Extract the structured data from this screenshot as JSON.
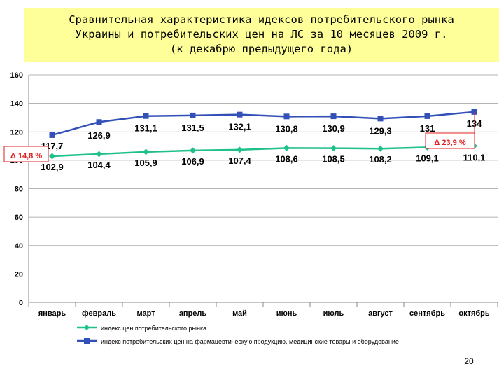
{
  "title": {
    "line1": "Сравнительная характеристика идексов потребительского рынка",
    "line2": "Украины и потребительских цен на ЛС за 10 месяцев 2009 г.",
    "line3": "(к декабрю предыдущего года)"
  },
  "page_number": "20",
  "chart_data": {
    "type": "line",
    "categories": [
      "январь",
      "февраль",
      "март",
      "апрель",
      "май",
      "июнь",
      "июль",
      "август",
      "сентябрь",
      "октябрь"
    ],
    "ylim": [
      0,
      160
    ],
    "yticks": [
      0,
      20,
      40,
      60,
      80,
      100,
      120,
      140,
      160
    ],
    "grid": true,
    "legend_placement": "bottom",
    "series": [
      {
        "name": "индекс цен потребительского рынка",
        "color": "#20c08a",
        "marker": "diamond",
        "values": [
          102.9,
          104.4,
          105.9,
          106.9,
          107.4,
          108.6,
          108.5,
          108.2,
          109.1,
          110.1
        ],
        "labels": [
          "102,9",
          "104,4",
          "105,9",
          "106,9",
          "107,4",
          "108,6",
          "108,5",
          "108,2",
          "109,1",
          "110,1"
        ]
      },
      {
        "name": "индекс потребительских цен на фармацевтическую продукцию, медицинские товары и оборудование",
        "color": "#3350b8",
        "marker": "square",
        "values": [
          117.7,
          126.9,
          131.1,
          131.5,
          132.1,
          130.8,
          130.9,
          129.3,
          131,
          134
        ],
        "labels": [
          "117,7",
          "126,9",
          "131,1",
          "131,5",
          "132,1",
          "130,8",
          "130,9",
          "129,3",
          "131",
          "134"
        ]
      }
    ],
    "annotations": [
      {
        "text": "Δ 14,8 %",
        "color": "#e02020",
        "category": "январь"
      },
      {
        "text": "Δ 23,9 %",
        "color": "#e02020",
        "category": "октябрь"
      }
    ]
  }
}
